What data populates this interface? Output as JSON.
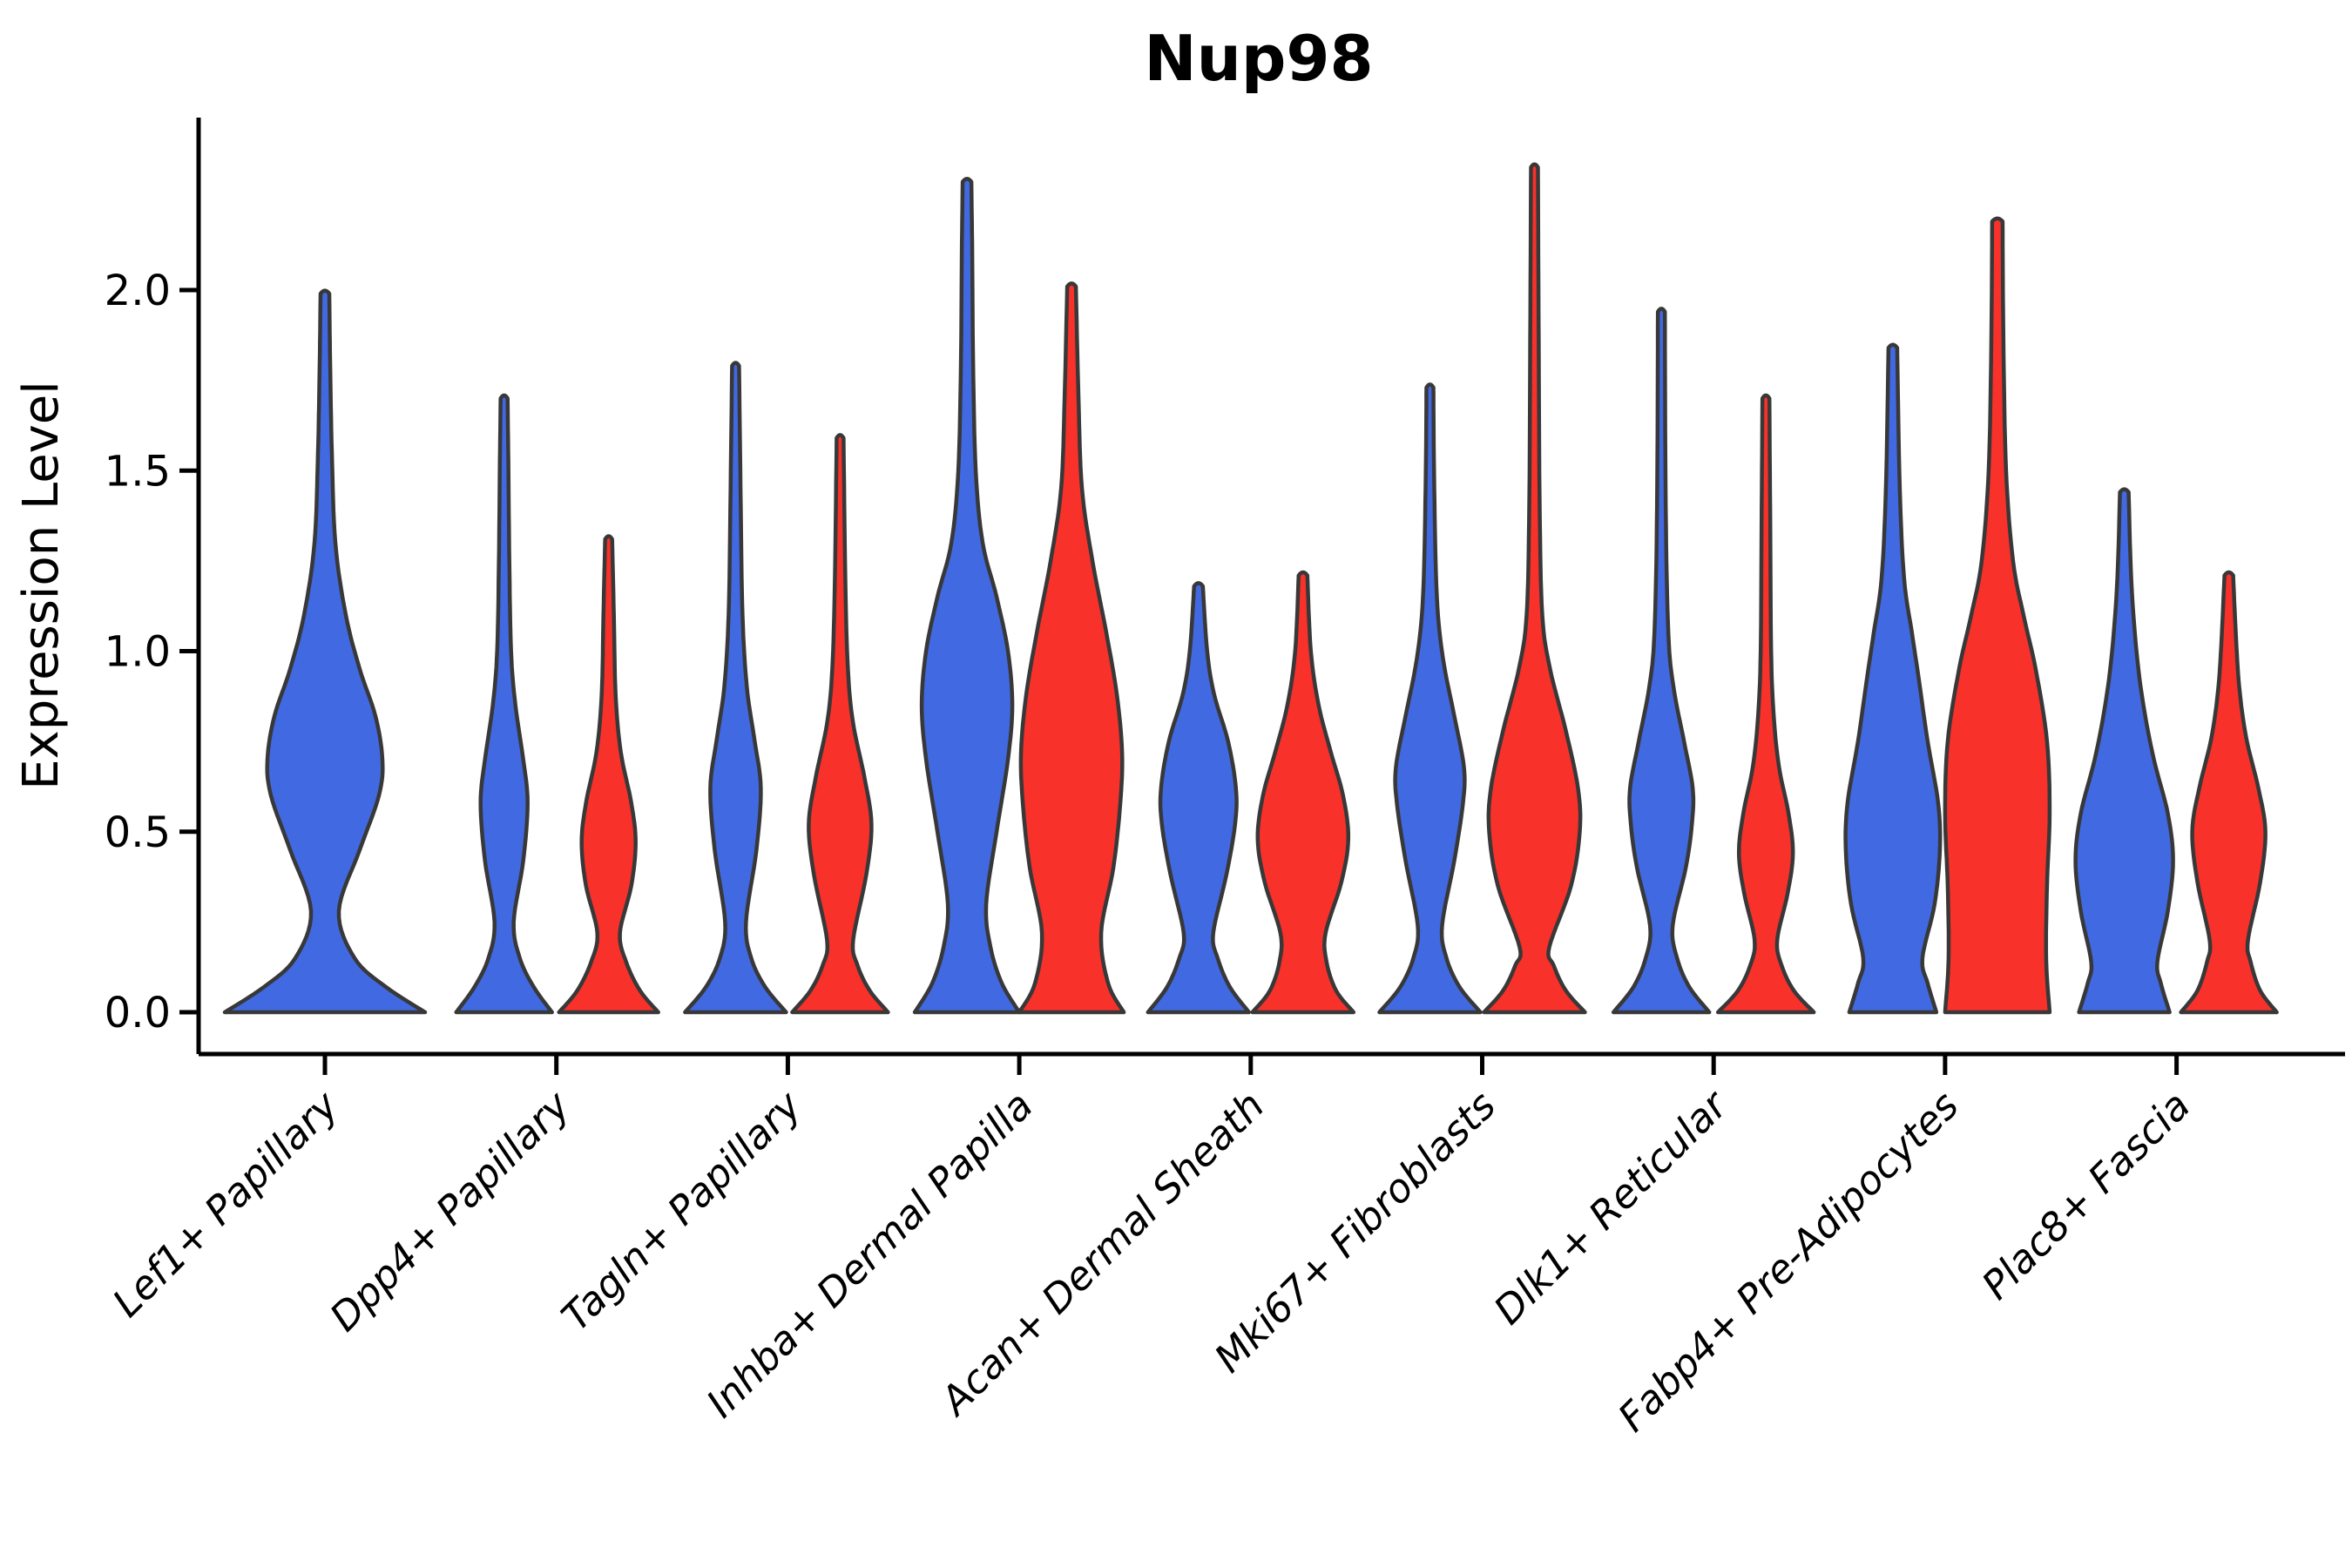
{
  "title": "Nup98",
  "y_axis": {
    "label": "Expression Level",
    "ticks": [
      "0.0",
      "0.5",
      "1.0",
      "1.5",
      "2.0"
    ]
  },
  "colors": {
    "blue_series": "#4169E1",
    "red_series": "#F8312B",
    "outline": "#383838",
    "axis": "#000000"
  },
  "chart_data": {
    "type": "violin",
    "title": "Nup98",
    "ylabel": "Expression Level",
    "ylim": [
      -0.12,
      2.48
    ],
    "yticks": [
      0.0,
      0.5,
      1.0,
      1.5,
      2.0
    ],
    "grid": false,
    "legend": "none",
    "categories": [
      "Lef1+ Papillary",
      "Dpp4+ Papillary",
      "Tagln+ Papillary",
      "Inhba+ Dermal Papilla",
      "Acan+ Dermal Sheath",
      "Mki67+ Fibroblasts",
      "Dlk1+ Reticular",
      "Fabp4+ Pre-Adipocytes",
      "Plac8+ Fascia"
    ],
    "series_colors": {
      "blue": "#4169E1",
      "red": "#F8312B"
    },
    "violins": [
      {
        "category": "Lef1+ Papillary",
        "series": "blue",
        "max": 1.99,
        "profile": [
          [
            0,
            115
          ],
          [
            0.07,
            70
          ],
          [
            0.15,
            34
          ],
          [
            0.28,
            16
          ],
          [
            0.45,
            40
          ],
          [
            0.6,
            62
          ],
          [
            0.7,
            66
          ],
          [
            0.82,
            58
          ],
          [
            0.95,
            40
          ],
          [
            1.1,
            24
          ],
          [
            1.3,
            12
          ],
          [
            1.55,
            8
          ],
          [
            1.8,
            6
          ],
          [
            1.99,
            5
          ]
        ]
      },
      {
        "category": "Dpp4+ Papillary",
        "series": "blue",
        "max": 1.7,
        "profile": [
          [
            0,
            55
          ],
          [
            0.07,
            34
          ],
          [
            0.15,
            18
          ],
          [
            0.25,
            11
          ],
          [
            0.42,
            22
          ],
          [
            0.58,
            27
          ],
          [
            0.7,
            22
          ],
          [
            0.85,
            13
          ],
          [
            1.0,
            8
          ],
          [
            1.25,
            6
          ],
          [
            1.5,
            5
          ],
          [
            1.7,
            4
          ]
        ]
      },
      {
        "category": "Dpp4+ Papillary",
        "series": "red",
        "max": 1.31,
        "profile": [
          [
            0,
            57
          ],
          [
            0.06,
            36
          ],
          [
            0.14,
            20
          ],
          [
            0.22,
            13
          ],
          [
            0.35,
            26
          ],
          [
            0.47,
            31
          ],
          [
            0.58,
            26
          ],
          [
            0.72,
            14
          ],
          [
            0.88,
            8
          ],
          [
            1.1,
            6
          ],
          [
            1.31,
            4
          ]
        ]
      },
      {
        "category": "Tagln+ Papillary",
        "series": "blue",
        "max": 1.79,
        "profile": [
          [
            0,
            58
          ],
          [
            0.07,
            34
          ],
          [
            0.15,
            18
          ],
          [
            0.25,
            12
          ],
          [
            0.45,
            24
          ],
          [
            0.62,
            29
          ],
          [
            0.75,
            22
          ],
          [
            0.9,
            13
          ],
          [
            1.1,
            8
          ],
          [
            1.4,
            6
          ],
          [
            1.79,
            4
          ]
        ]
      },
      {
        "category": "Tagln+ Papillary",
        "series": "red",
        "max": 1.59,
        "profile": [
          [
            0,
            55
          ],
          [
            0.06,
            34
          ],
          [
            0.13,
            20
          ],
          [
            0.2,
            15
          ],
          [
            0.38,
            30
          ],
          [
            0.52,
            36
          ],
          [
            0.65,
            28
          ],
          [
            0.8,
            15
          ],
          [
            0.95,
            9
          ],
          [
            1.2,
            6
          ],
          [
            1.59,
            4
          ]
        ]
      },
      {
        "category": "Inhba+ Dermal Papilla",
        "series": "blue",
        "max": 2.3,
        "profile": [
          [
            0,
            60
          ],
          [
            0.08,
            40
          ],
          [
            0.18,
            27
          ],
          [
            0.3,
            22
          ],
          [
            0.5,
            34
          ],
          [
            0.7,
            47
          ],
          [
            0.85,
            52
          ],
          [
            1.0,
            47
          ],
          [
            1.15,
            34
          ],
          [
            1.3,
            18
          ],
          [
            1.5,
            10
          ],
          [
            1.8,
            7
          ],
          [
            2.1,
            6
          ],
          [
            2.3,
            5
          ]
        ]
      },
      {
        "category": "Inhba+ Dermal Papilla",
        "series": "red",
        "max": 2.01,
        "profile": [
          [
            0,
            60
          ],
          [
            0.08,
            42
          ],
          [
            0.22,
            34
          ],
          [
            0.4,
            48
          ],
          [
            0.58,
            56
          ],
          [
            0.72,
            58
          ],
          [
            0.88,
            52
          ],
          [
            1.05,
            40
          ],
          [
            1.25,
            24
          ],
          [
            1.45,
            12
          ],
          [
            1.7,
            8
          ],
          [
            2.01,
            5
          ]
        ]
      },
      {
        "category": "Acan+ Dermal Sheath",
        "series": "blue",
        "max": 1.18,
        "profile": [
          [
            0,
            58
          ],
          [
            0.07,
            36
          ],
          [
            0.15,
            22
          ],
          [
            0.22,
            17
          ],
          [
            0.38,
            32
          ],
          [
            0.52,
            42
          ],
          [
            0.62,
            43
          ],
          [
            0.75,
            34
          ],
          [
            0.88,
            18
          ],
          [
            1.0,
            10
          ],
          [
            1.18,
            5
          ]
        ]
      },
      {
        "category": "Acan+ Dermal Sheath",
        "series": "red",
        "max": 1.21,
        "profile": [
          [
            0,
            58
          ],
          [
            0.06,
            38
          ],
          [
            0.14,
            27
          ],
          [
            0.22,
            26
          ],
          [
            0.36,
            44
          ],
          [
            0.48,
            52
          ],
          [
            0.6,
            46
          ],
          [
            0.72,
            32
          ],
          [
            0.85,
            18
          ],
          [
            1.0,
            9
          ],
          [
            1.21,
            5
          ]
        ]
      },
      {
        "category": "Mki67+ Fibroblasts",
        "series": "blue",
        "max": 1.73,
        "profile": [
          [
            0,
            58
          ],
          [
            0.07,
            34
          ],
          [
            0.15,
            19
          ],
          [
            0.24,
            14
          ],
          [
            0.42,
            28
          ],
          [
            0.58,
            38
          ],
          [
            0.68,
            39
          ],
          [
            0.82,
            28
          ],
          [
            0.98,
            15
          ],
          [
            1.15,
            8
          ],
          [
            1.45,
            5
          ],
          [
            1.73,
            4
          ]
        ]
      },
      {
        "category": "Mki67+ Fibroblasts",
        "series": "red",
        "max": 2.34,
        "profile": [
          [
            0,
            58
          ],
          [
            0.06,
            36
          ],
          [
            0.13,
            22
          ],
          [
            0.18,
            17
          ],
          [
            0.35,
            42
          ],
          [
            0.5,
            52
          ],
          [
            0.62,
            50
          ],
          [
            0.78,
            36
          ],
          [
            0.95,
            18
          ],
          [
            1.1,
            9
          ],
          [
            1.4,
            6
          ],
          [
            1.8,
            5
          ],
          [
            2.34,
            4
          ]
        ]
      },
      {
        "category": "Dlk1+ Reticular",
        "series": "blue",
        "max": 1.94,
        "profile": [
          [
            0,
            55
          ],
          [
            0.07,
            32
          ],
          [
            0.15,
            18
          ],
          [
            0.24,
            13
          ],
          [
            0.4,
            28
          ],
          [
            0.52,
            35
          ],
          [
            0.62,
            36
          ],
          [
            0.75,
            26
          ],
          [
            0.9,
            14
          ],
          [
            1.05,
            8
          ],
          [
            1.4,
            5
          ],
          [
            1.94,
            4
          ]
        ]
      },
      {
        "category": "Dlk1+ Reticular",
        "series": "red",
        "max": 1.7,
        "profile": [
          [
            0,
            55
          ],
          [
            0.06,
            32
          ],
          [
            0.13,
            18
          ],
          [
            0.2,
            13
          ],
          [
            0.33,
            25
          ],
          [
            0.44,
            31
          ],
          [
            0.55,
            26
          ],
          [
            0.68,
            15
          ],
          [
            0.82,
            9
          ],
          [
            1.0,
            6
          ],
          [
            1.35,
            5
          ],
          [
            1.7,
            4
          ]
        ]
      },
      {
        "category": "Fabp4+ Pre-Adipocytes",
        "series": "blue",
        "max": 1.84,
        "profile": [
          [
            0,
            50
          ],
          [
            0.08,
            40
          ],
          [
            0.15,
            34
          ],
          [
            0.3,
            48
          ],
          [
            0.45,
            54
          ],
          [
            0.58,
            52
          ],
          [
            0.75,
            40
          ],
          [
            0.92,
            30
          ],
          [
            1.05,
            22
          ],
          [
            1.2,
            13
          ],
          [
            1.45,
            8
          ],
          [
            1.84,
            5
          ]
        ]
      },
      {
        "category": "Fabp4+ Pre-Adipocytes",
        "series": "red",
        "max": 2.19,
        "profile": [
          [
            0,
            60
          ],
          [
            0.15,
            56
          ],
          [
            0.35,
            57
          ],
          [
            0.55,
            60
          ],
          [
            0.75,
            57
          ],
          [
            0.95,
            44
          ],
          [
            1.1,
            30
          ],
          [
            1.25,
            18
          ],
          [
            1.5,
            10
          ],
          [
            1.85,
            7
          ],
          [
            2.19,
            6
          ]
        ]
      },
      {
        "category": "Plac8+ Fascia",
        "series": "blue",
        "max": 1.44,
        "profile": [
          [
            0,
            52
          ],
          [
            0.08,
            42
          ],
          [
            0.14,
            38
          ],
          [
            0.28,
            50
          ],
          [
            0.42,
            56
          ],
          [
            0.55,
            50
          ],
          [
            0.7,
            34
          ],
          [
            0.85,
            22
          ],
          [
            1.0,
            14
          ],
          [
            1.2,
            8
          ],
          [
            1.44,
            5
          ]
        ]
      },
      {
        "category": "Plac8+ Fascia",
        "series": "red",
        "max": 1.21,
        "profile": [
          [
            0,
            55
          ],
          [
            0.06,
            36
          ],
          [
            0.14,
            25
          ],
          [
            0.2,
            22
          ],
          [
            0.36,
            36
          ],
          [
            0.5,
            42
          ],
          [
            0.62,
            34
          ],
          [
            0.76,
            20
          ],
          [
            0.9,
            12
          ],
          [
            1.05,
            8
          ],
          [
            1.21,
            5
          ]
        ]
      }
    ]
  }
}
